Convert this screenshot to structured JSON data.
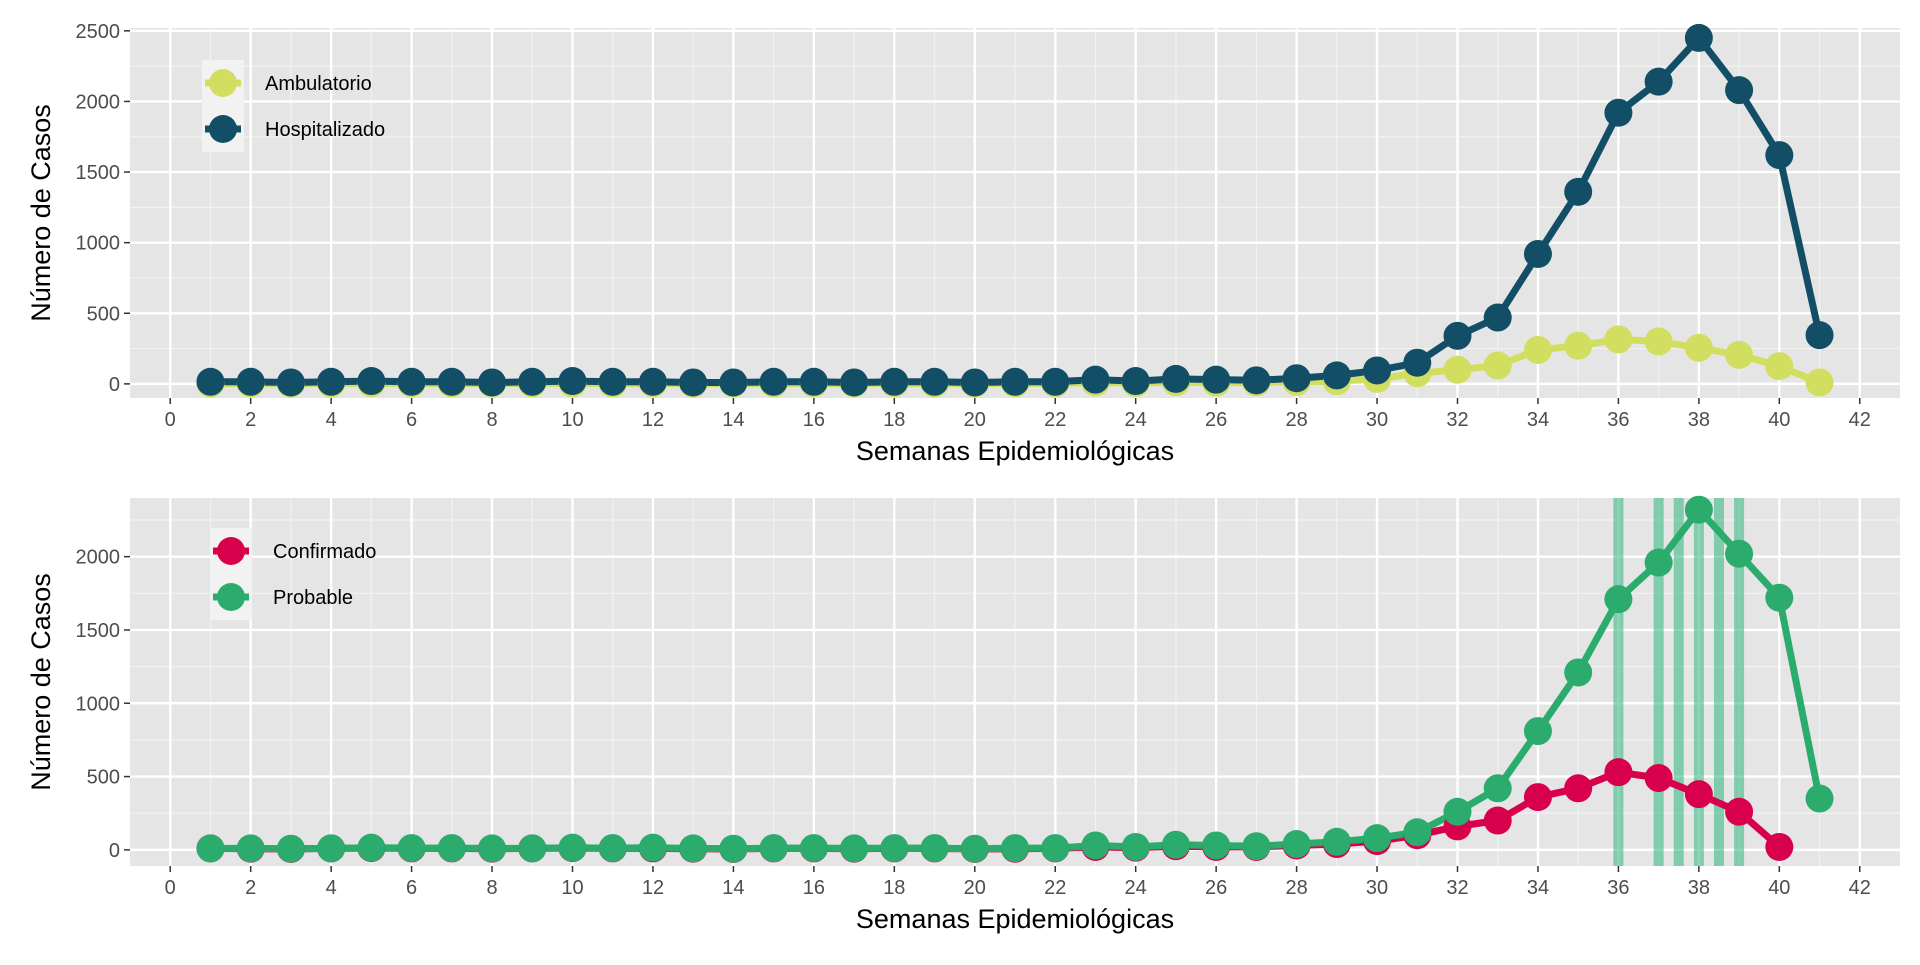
{
  "chart_data": [
    {
      "type": "line",
      "title": "",
      "xlabel": "Semanas Epidemiológicas",
      "ylabel": "Número de Casos",
      "xlim": [
        -1,
        43
      ],
      "ylim": [
        -100,
        2520
      ],
      "xticks": [
        0,
        2,
        4,
        6,
        8,
        10,
        12,
        14,
        16,
        18,
        20,
        22,
        24,
        26,
        28,
        30,
        32,
        34,
        36,
        38,
        40,
        42
      ],
      "yticks": [
        0,
        500,
        1000,
        1500,
        2000,
        2500
      ],
      "grid": true,
      "legend_position": "top-left",
      "x": [
        1,
        2,
        3,
        4,
        5,
        6,
        7,
        8,
        9,
        10,
        11,
        12,
        13,
        14,
        15,
        16,
        17,
        18,
        19,
        20,
        21,
        22,
        23,
        24,
        25,
        26,
        27,
        28,
        29,
        30,
        31,
        32,
        33,
        34,
        35,
        36,
        37,
        38,
        39,
        40,
        41
      ],
      "series": [
        {
          "name": "Ambulatorio",
          "color": "#d1de5f",
          "values": [
            2,
            3,
            1,
            2,
            4,
            3,
            2,
            2,
            3,
            4,
            2,
            3,
            1,
            2,
            3,
            2,
            2,
            3,
            2,
            1,
            3,
            3,
            10,
            6,
            12,
            8,
            10,
            14,
            18,
            35,
            75,
            100,
            130,
            240,
            270,
            315,
            300,
            255,
            205,
            125,
            10
          ]
        },
        {
          "name": "Hospitalizado",
          "color": "#124e66",
          "values": [
            15,
            15,
            10,
            15,
            20,
            15,
            15,
            10,
            15,
            20,
            15,
            15,
            10,
            10,
            15,
            15,
            10,
            15,
            15,
            10,
            15,
            15,
            30,
            20,
            35,
            30,
            25,
            40,
            60,
            95,
            150,
            340,
            470,
            920,
            1360,
            1920,
            2140,
            2450,
            2080,
            1620,
            345
          ]
        }
      ]
    },
    {
      "type": "line",
      "title": "",
      "xlabel": "Semanas Epidemiológicas",
      "ylabel": "Número de Casos",
      "xlim": [
        -1,
        43
      ],
      "ylim": [
        -110,
        2400
      ],
      "xticks": [
        0,
        2,
        4,
        6,
        8,
        10,
        12,
        14,
        16,
        18,
        20,
        22,
        24,
        26,
        28,
        30,
        32,
        34,
        36,
        38,
        40,
        42
      ],
      "yticks": [
        0,
        500,
        1000,
        1500,
        2000
      ],
      "grid": true,
      "legend_position": "top-left",
      "vertical_lines": [
        36,
        37,
        37.5,
        38,
        38.5,
        39
      ],
      "vertical_line_color": "#2eb67d",
      "x": [
        1,
        2,
        3,
        4,
        5,
        6,
        7,
        8,
        9,
        10,
        11,
        12,
        13,
        14,
        15,
        16,
        17,
        18,
        19,
        20,
        21,
        22,
        23,
        24,
        25,
        26,
        27,
        28,
        29,
        30,
        31,
        32,
        33,
        34,
        35,
        36,
        37,
        38,
        39,
        40,
        41
      ],
      "series": [
        {
          "name": "Confirmado",
          "color": "#d8004c",
          "values": [
            10,
            8,
            6,
            10,
            12,
            10,
            10,
            8,
            10,
            12,
            10,
            10,
            8,
            6,
            10,
            10,
            8,
            10,
            10,
            6,
            8,
            10,
            20,
            15,
            25,
            20,
            20,
            30,
            40,
            60,
            100,
            160,
            200,
            360,
            420,
            530,
            490,
            380,
            260,
            20,
            null
          ]
        },
        {
          "name": "Probable",
          "color": "#2bac6d",
          "values": [
            10,
            10,
            8,
            10,
            15,
            12,
            12,
            10,
            10,
            15,
            12,
            15,
            10,
            8,
            12,
            12,
            10,
            12,
            12,
            8,
            12,
            12,
            30,
            20,
            35,
            30,
            25,
            40,
            55,
            80,
            120,
            260,
            420,
            810,
            1210,
            1710,
            1960,
            2320,
            2020,
            1720,
            350
          ]
        }
      ]
    }
  ]
}
